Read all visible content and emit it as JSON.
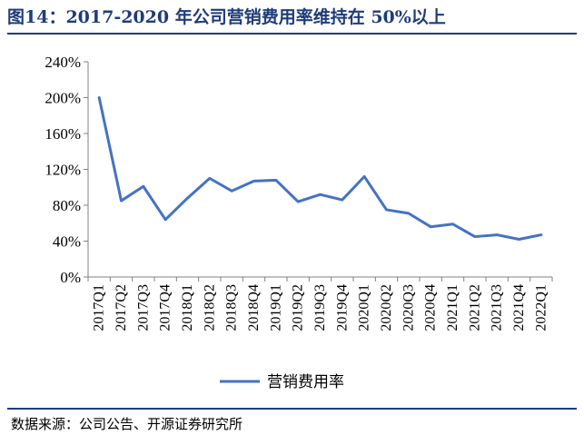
{
  "title": "图14：2017-2020 年公司营销费用率维持在 50%以上",
  "source": "数据来源：公司公告、开源证券研究所",
  "chart_data": {
    "type": "line",
    "categories": [
      "2017Q1",
      "2017Q2",
      "2017Q3",
      "2017Q4",
      "2018Q1",
      "2018Q2",
      "2018Q3",
      "2018Q4",
      "2019Q1",
      "2019Q2",
      "2019Q3",
      "2019Q4",
      "2020Q1",
      "2020Q2",
      "2020Q3",
      "2020Q4",
      "2021Q1",
      "2021Q2",
      "2021Q3",
      "2021Q4",
      "2022Q1"
    ],
    "series": [
      {
        "name": "营销费用率",
        "values": [
          200,
          85,
          101,
          64,
          88,
          110,
          96,
          107,
          108,
          84,
          92,
          86,
          112,
          75,
          71,
          56,
          59,
          45,
          47,
          42,
          47
        ],
        "color": "#4472c4"
      }
    ],
    "yticks": [
      0,
      40,
      80,
      120,
      160,
      200,
      240
    ],
    "ytick_labels": [
      "0%",
      "40%",
      "80%",
      "120%",
      "160%",
      "200%",
      "240%"
    ],
    "ylim": [
      0,
      240
    ],
    "legend_position": "bottom",
    "grid": false
  }
}
